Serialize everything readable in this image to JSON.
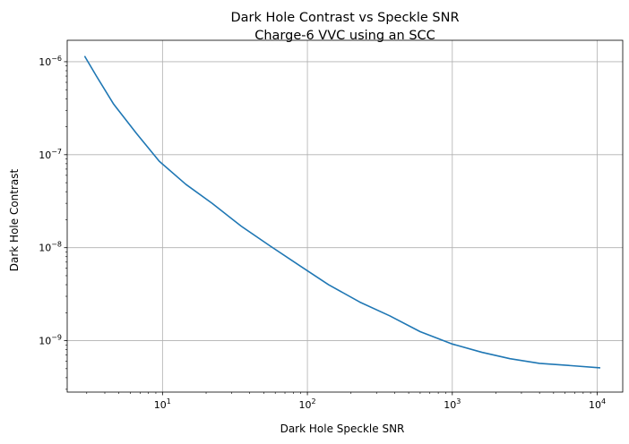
{
  "chart_data": {
    "type": "line",
    "title": "Dark Hole Contrast vs Speckle SNR",
    "subtitle": "Charge-6 VVC using an SCC",
    "xlabel": "Dark Hole Speckle SNR",
    "ylabel": "Dark Hole Contrast",
    "xscale": "log",
    "yscale": "log",
    "xlim": [
      2.2,
      15000
    ],
    "ylim": [
      2.8e-10,
      1.7e-06
    ],
    "grid": true,
    "x_ticks": [
      {
        "value": 10,
        "base": "10",
        "exp": "1"
      },
      {
        "value": 100,
        "base": "10",
        "exp": "2"
      },
      {
        "value": 1000,
        "base": "10",
        "exp": "3"
      },
      {
        "value": 10000,
        "base": "10",
        "exp": "4"
      }
    ],
    "y_ticks": [
      {
        "value": 1e-09,
        "base": "10",
        "exp": "−9"
      },
      {
        "value": 1e-08,
        "base": "10",
        "exp": "−8"
      },
      {
        "value": 1e-07,
        "base": "10",
        "exp": "−7"
      },
      {
        "value": 1e-06,
        "base": "10",
        "exp": "−6"
      }
    ],
    "series": [
      {
        "color": "#1f77b4",
        "x": [
          2.9,
          3.5,
          4.6,
          6.6,
          9.5,
          14.5,
          22,
          35,
          55,
          90,
          140,
          230,
          370,
          600,
          1000,
          1600,
          2500,
          4000,
          6500,
          10500
        ],
        "y": [
          1.15e-06,
          7e-07,
          3.5e-07,
          1.7e-07,
          8.5e-08,
          4.8e-08,
          3e-08,
          1.7e-08,
          1.05e-08,
          6.3e-09,
          4e-09,
          2.6e-09,
          1.85e-09,
          1.25e-09,
          9.2e-10,
          7.5e-10,
          6.4e-10,
          5.7e-10,
          5.4e-10,
          5.1e-10
        ]
      }
    ]
  }
}
